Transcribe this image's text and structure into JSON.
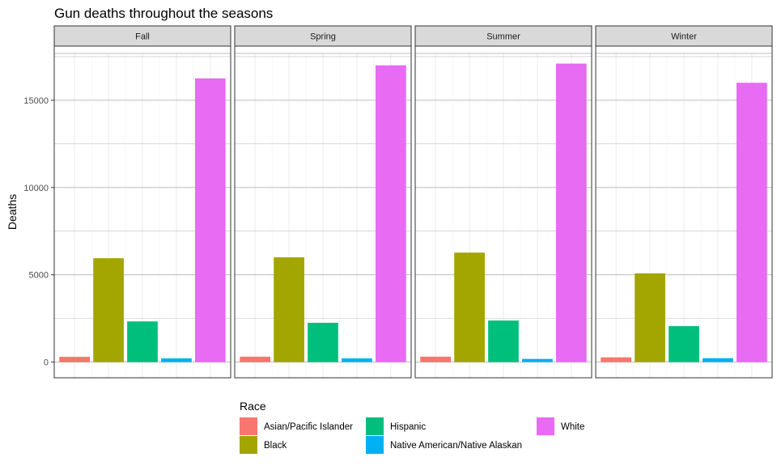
{
  "chart_data": {
    "type": "bar",
    "title": "Gun deaths throughout the seasons",
    "xlabel": "",
    "ylabel": "Deaths",
    "ylim": [
      -900,
      18100
    ],
    "yticks": [
      0,
      5000,
      10000,
      15000
    ],
    "ytick_labels": [
      "0",
      "5000",
      "10000",
      "15000"
    ],
    "facets": [
      "Fall",
      "Spring",
      "Summer",
      "Winter"
    ],
    "categories": [
      "Asian/Pacific Islander",
      "Black",
      "Hispanic",
      "Native American/Native Alaskan",
      "White"
    ],
    "colors": {
      "Asian/Pacific Islander": "#F8766D",
      "Black": "#A3A500",
      "Hispanic": "#00BF7D",
      "Native American/Native Alaskan": "#00B0F6",
      "White": "#E76BF3"
    },
    "series": [
      {
        "facet": "Fall",
        "values": [
          300,
          5950,
          2330,
          210,
          16250
        ]
      },
      {
        "facet": "Spring",
        "values": [
          310,
          6000,
          2250,
          210,
          17000
        ]
      },
      {
        "facet": "Summer",
        "values": [
          310,
          6270,
          2380,
          180,
          17100
        ]
      },
      {
        "facet": "Winter",
        "values": [
          270,
          5080,
          2060,
          220,
          16000
        ]
      }
    ],
    "legend": {
      "title": "Race",
      "position": "bottom"
    },
    "grid": true
  }
}
